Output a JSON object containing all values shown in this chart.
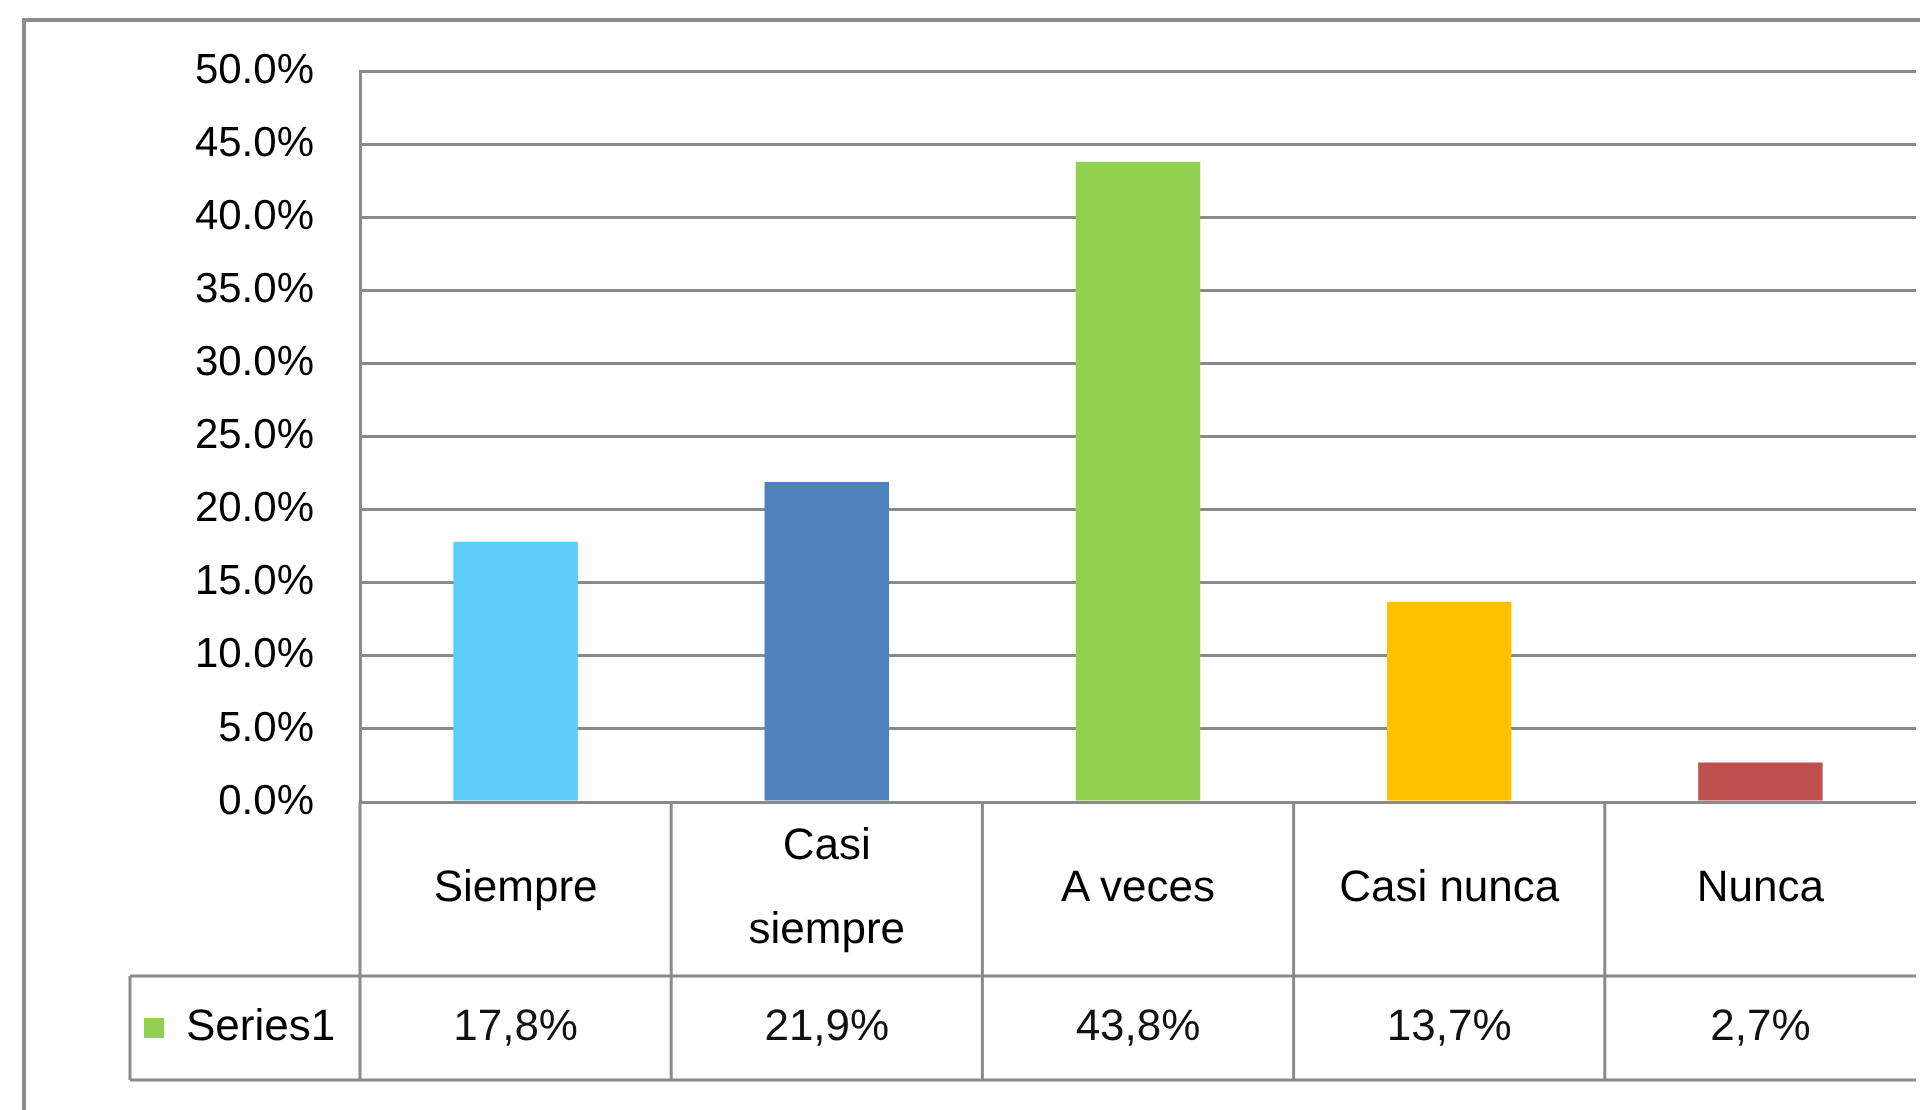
{
  "chart_data": {
    "type": "bar",
    "categories": [
      "Siempre",
      "Casi siempre",
      "A veces",
      "Casi nunca",
      "Nunca"
    ],
    "series": [
      {
        "name": "Series1",
        "color": "#92d050",
        "colors": [
          "#5ccdf7",
          "#4f81bd",
          "#92d050",
          "#ffc000",
          "#c0504d"
        ],
        "values": [
          17.8,
          21.9,
          43.8,
          13.7,
          2.7
        ],
        "value_labels": [
          "17,8%",
          "21,9%",
          "43,8%",
          "13,7%",
          "2,7%"
        ]
      }
    ],
    "ylim": [
      0,
      50
    ],
    "yticks": [
      {
        "value": 0,
        "label": "0.0%"
      },
      {
        "value": 5,
        "label": "5.0%"
      },
      {
        "value": 10,
        "label": "10.0%"
      },
      {
        "value": 15,
        "label": "15.0%"
      },
      {
        "value": 20,
        "label": "20.0%"
      },
      {
        "value": 25,
        "label": "25.0%"
      },
      {
        "value": 30,
        "label": "30.0%"
      },
      {
        "value": 35,
        "label": "35.0%"
      },
      {
        "value": 40,
        "label": "40.0%"
      },
      {
        "value": 45,
        "label": "45.0%"
      },
      {
        "value": 50,
        "label": "50.0%"
      }
    ],
    "grid": "y",
    "legend": "bottom left"
  }
}
